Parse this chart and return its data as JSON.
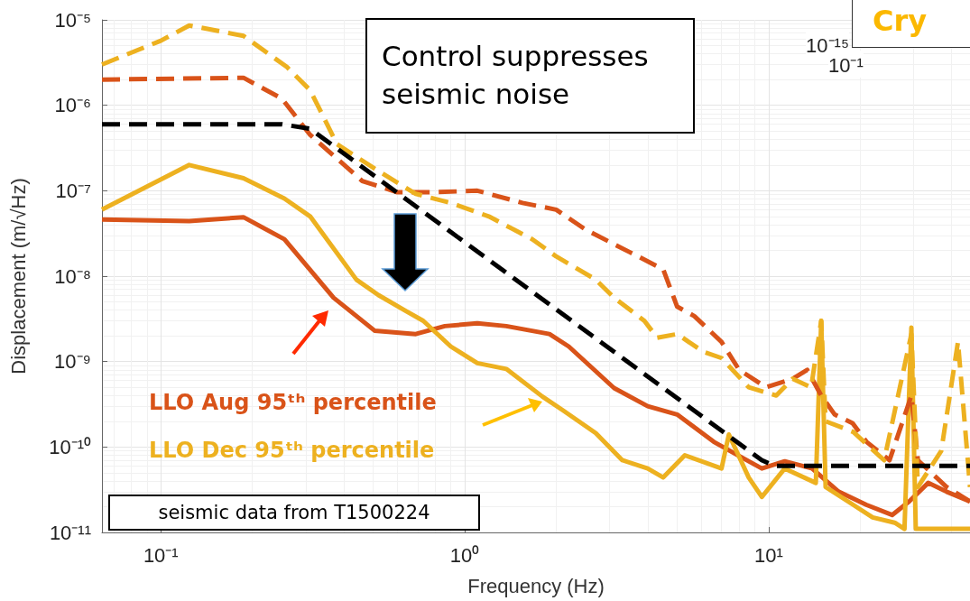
{
  "chart_data": [
    {
      "type": "line",
      "xlabel": "Frequency (Hz)",
      "ylabel": "Displacement (m/√Hz)",
      "log": "xy",
      "grid": true,
      "legend": false,
      "xlim": [
        0.064,
        46
      ],
      "ylim": [
        1e-11,
        1e-05
      ],
      "xticks": [
        {
          "value": 0.1,
          "label": "10⁻¹"
        },
        {
          "value": 1,
          "label": "10⁰"
        },
        {
          "value": 10,
          "label": "10¹"
        }
      ],
      "yticks": [
        {
          "value": 1e-11,
          "label": "10⁻¹¹"
        },
        {
          "value": 1e-10,
          "label": "10⁻¹⁰"
        },
        {
          "value": 1e-09,
          "label": "10⁻⁹"
        },
        {
          "value": 1e-08,
          "label": "10⁻⁸"
        },
        {
          "value": 1e-07,
          "label": "10⁻⁷"
        },
        {
          "value": 1e-06,
          "label": "10⁻⁶"
        },
        {
          "value": 1e-05,
          "label": "10⁻⁵"
        }
      ],
      "series": [
        {
          "name": "LLO Aug 95ᵗʰ percentile",
          "color": "#d95319",
          "line_style": "solid",
          "x": [
            0.064,
            0.124,
            0.187,
            0.255,
            0.37,
            0.505,
            0.69,
            0.86,
            1.1,
            1.37,
            1.9,
            2.2,
            3.1,
            4.0,
            5.0,
            6.6,
            8.6,
            9.5,
            11.3,
            13.9,
            17,
            21,
            25.5,
            29,
            33.5,
            38.5,
            46
          ],
          "values": [
            4.6e-08,
            4.4e-08,
            4.9e-08,
            2.7e-08,
            5.6e-09,
            2.3e-09,
            2.1e-09,
            2.6e-09,
            2.8e-09,
            2.6e-09,
            2.1e-09,
            1.5e-09,
            4.9e-10,
            3e-10,
            2.4e-10,
            1.15e-10,
            6.8e-11,
            5.6e-11,
            6.8e-11,
            5.6e-11,
            3e-11,
            2.1e-11,
            1.6e-11,
            2.3e-11,
            3.8e-11,
            3e-11,
            2.3e-11
          ]
        },
        {
          "name": "LLO Dec 95ᵗʰ percentile",
          "color": "#edb120",
          "line_style": "solid",
          "x": [
            0.064,
            0.124,
            0.187,
            0.255,
            0.31,
            0.44,
            0.52,
            0.64,
            0.73,
            0.9,
            1.1,
            1.37,
            1.8,
            2.1,
            2.7,
            3.3,
            4.0,
            4.5,
            5.3,
            7.0,
            7.4,
            8.6,
            9.5,
            11.3,
            14.3,
            14.9,
            15.4,
            19,
            22,
            26,
            28,
            29.5,
            30.5,
            46
          ],
          "values": [
            6e-08,
            2e-07,
            1.4e-07,
            8.1e-08,
            5e-08,
            9.1e-09,
            6e-09,
            3.9e-09,
            3e-09,
            1.5e-09,
            9.6e-10,
            8.2e-10,
            3.9e-10,
            2.7e-10,
            1.45e-10,
            7e-11,
            5.6e-11,
            4.4e-11,
            8e-11,
            5.6e-11,
            1.4e-10,
            4.4e-11,
            2.6e-11,
            5.6e-11,
            3.8e-11,
            3e-09,
            3.4e-11,
            2.1e-11,
            1.5e-11,
            1.3e-11,
            1.1e-11,
            2.5e-09,
            1.1e-11,
            1.1e-11
          ]
        },
        {
          "color": "#d95319",
          "line_style": "dashed",
          "x": [
            0.064,
            0.187,
            0.25,
            0.31,
            0.46,
            0.6,
            0.79,
            1.1,
            1.55,
            2.0,
            2.5,
            3.5,
            4.5,
            5.0,
            5.7,
            7.0,
            8.0,
            9.8,
            12,
            13.4,
            14.9,
            16.5,
            18.9,
            21,
            25,
            29.5,
            31,
            38.5,
            46
          ],
          "values": [
            2e-06,
            2.1e-06,
            1.2e-06,
            4.5e-07,
            1.3e-07,
            9.6e-08,
            9.6e-08,
            1e-07,
            7.2e-08,
            6e-08,
            3.5e-08,
            1.9e-08,
            1.2e-08,
            4.4e-09,
            3.4e-09,
            1.7e-09,
            8e-10,
            5e-10,
            6.3e-10,
            8e-10,
            4e-10,
            2.4e-10,
            1.9e-10,
            1.15e-10,
            7e-11,
            4e-10,
            7e-11,
            3.4e-11,
            2.3e-11
          ]
        },
        {
          "color": "#edb120",
          "line_style": "dashed",
          "x": [
            0.064,
            0.1,
            0.124,
            0.187,
            0.26,
            0.31,
            0.38,
            0.52,
            0.69,
            0.9,
            1.2,
            1.67,
            2.0,
            2.7,
            3.1,
            3.9,
            4.3,
            5.0,
            6.1,
            7.0,
            8.6,
            10.6,
            12,
            13.8,
            14.9,
            15.4,
            19,
            24,
            29.5,
            31,
            37,
            42,
            46
          ],
          "values": [
            3e-06,
            5.7e-06,
            8.6e-06,
            6.5e-06,
            2.8e-06,
            1.5e-06,
            3.5e-07,
            1.7e-07,
            9.2e-08,
            7.2e-08,
            5e-08,
            2.7e-08,
            1.7e-08,
            9.1e-09,
            5.6e-09,
            3e-09,
            1.9e-09,
            2.1e-09,
            1.3e-09,
            1.1e-09,
            5e-10,
            4e-10,
            6.3e-10,
            5e-10,
            3e-09,
            2e-10,
            1.5e-10,
            7e-11,
            2.1e-09,
            3.4e-11,
            9e-11,
            1.7e-09,
            3.4e-11
          ]
        },
        {
          "color": "#000000",
          "line_style": "dashed",
          "x": [
            0.064,
            0.25,
            0.31,
            9.5,
            10.5,
            46
          ],
          "values": [
            6e-07,
            6e-07,
            5.3e-07,
            7e-11,
            6e-11,
            6e-11
          ]
        }
      ],
      "annotations": [
        "Control suppresses seismic noise",
        "seismic data from T1500224"
      ]
    },
    {
      "type": "other",
      "annotations": [
        "10⁻¹⁵",
        "10⁻¹",
        "Cry"
      ]
    }
  ]
}
